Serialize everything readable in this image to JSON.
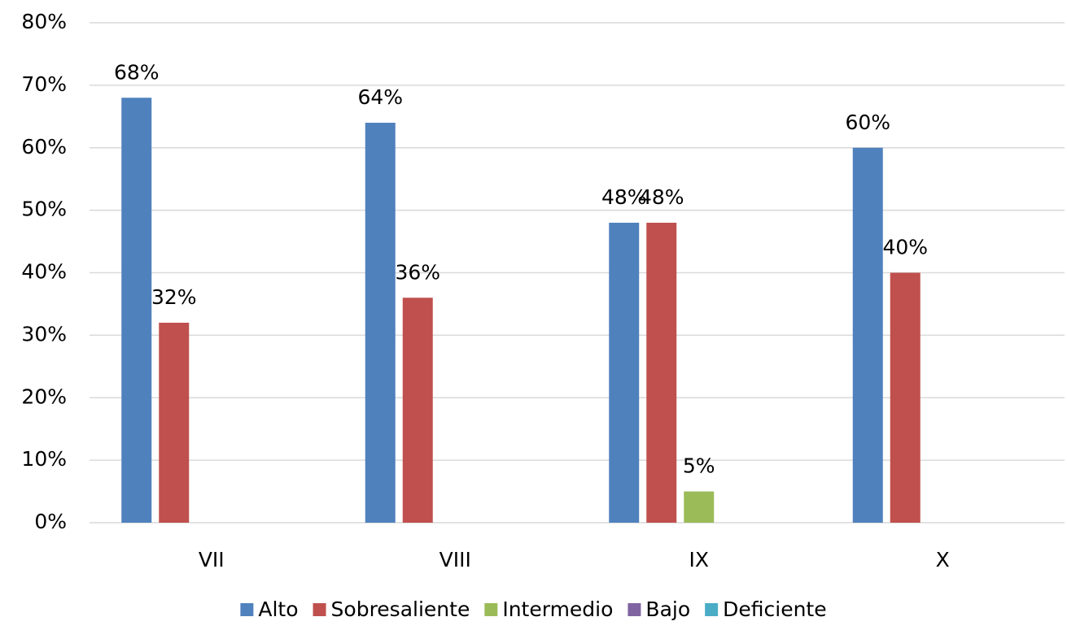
{
  "chart_data": {
    "type": "bar",
    "categories": [
      "VII",
      "VIII",
      "IX",
      "X"
    ],
    "series": [
      {
        "name": "Alto",
        "color": "#4f81bd",
        "values": [
          68,
          64,
          48,
          60
        ],
        "value_labels": [
          "68%",
          "64%",
          "48%",
          "60%"
        ]
      },
      {
        "name": "Sobresaliente",
        "color": "#c0504d",
        "values": [
          32,
          36,
          48,
          40
        ],
        "value_labels": [
          "32%",
          "36%",
          "48%",
          "40%"
        ]
      },
      {
        "name": "Intermedio",
        "color": "#9bbb59",
        "values": [
          null,
          null,
          5,
          null
        ],
        "value_labels": [
          null,
          null,
          "5%",
          null
        ]
      },
      {
        "name": "Bajo",
        "color": "#8064a2",
        "values": [
          null,
          null,
          null,
          null
        ],
        "value_labels": [
          null,
          null,
          null,
          null
        ]
      },
      {
        "name": "Deficiente",
        "color": "#4bacc6",
        "values": [
          null,
          null,
          null,
          null
        ],
        "value_labels": [
          null,
          null,
          null,
          null
        ]
      }
    ],
    "ylim": [
      0,
      80
    ],
    "yticks": [
      {
        "value": 0,
        "label": "0%"
      },
      {
        "value": 10,
        "label": "10%"
      },
      {
        "value": 20,
        "label": "20%"
      },
      {
        "value": 30,
        "label": "30%"
      },
      {
        "value": 40,
        "label": "40%"
      },
      {
        "value": 50,
        "label": "50%"
      },
      {
        "value": 60,
        "label": "60%"
      },
      {
        "value": 70,
        "label": "70%"
      },
      {
        "value": 80,
        "label": "80%"
      }
    ],
    "grid": true,
    "legend": "bottom"
  }
}
